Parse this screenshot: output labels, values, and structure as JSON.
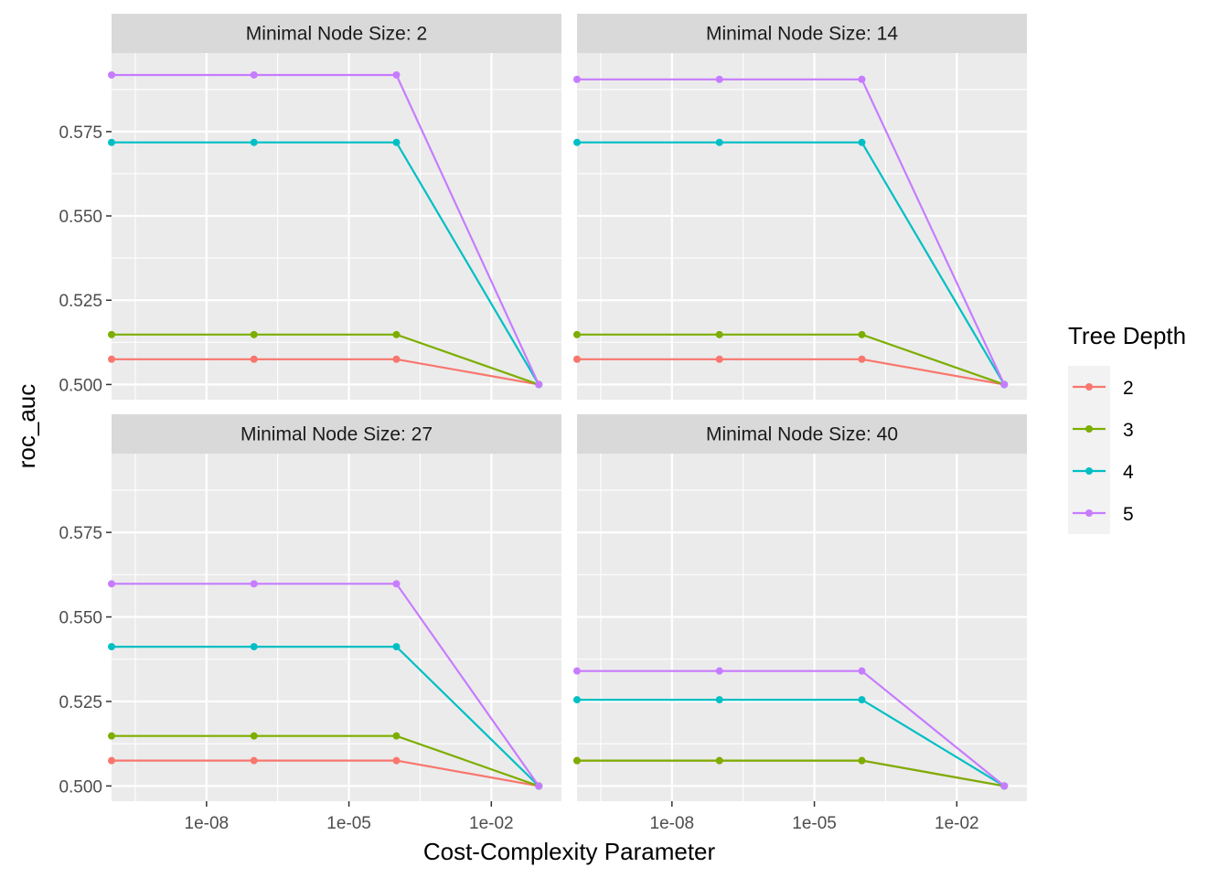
{
  "chart_data": {
    "type": "line",
    "facet_label_prefix": "Minimal Node Size: ",
    "xlabel": "Cost-Complexity Parameter",
    "ylabel": "roc_auc",
    "x_scale": "log10",
    "x_ticks": [
      1e-08,
      1e-05,
      0.01
    ],
    "x_tick_labels": [
      "1e-08",
      "1e-05",
      "1e-02"
    ],
    "xlim": [
      1e-10,
      0.3
    ],
    "y_ticks": [
      0.5,
      0.525,
      0.55,
      0.575
    ],
    "y_tick_labels": [
      "0.500",
      "0.525",
      "0.550",
      "0.575"
    ],
    "ylim": [
      0.4955,
      0.5983
    ],
    "x": [
      1e-10,
      1e-07,
      0.0001,
      0.1
    ],
    "legend": {
      "title": "Tree Depth",
      "position": "right"
    },
    "colors": {
      "2": "#F8766D",
      "3": "#7CAE00",
      "4": "#00BFC4",
      "5": "#C77CFF"
    },
    "panel_background": "#EBEBEB",
    "strip_background": "#D9D9D9",
    "grid": true,
    "panels": [
      {
        "facet": "Minimal Node Size: 2",
        "series": [
          {
            "name": "2",
            "values": [
              0.5075,
              0.5075,
              0.5075,
              0.5
            ]
          },
          {
            "name": "3",
            "values": [
              0.5148,
              0.5148,
              0.5148,
              0.5
            ]
          },
          {
            "name": "4",
            "values": [
              0.5718,
              0.5718,
              0.5718,
              0.5
            ]
          },
          {
            "name": "5",
            "values": [
              0.5918,
              0.5918,
              0.5918,
              0.5
            ]
          }
        ]
      },
      {
        "facet": "Minimal Node Size: 14",
        "series": [
          {
            "name": "2",
            "values": [
              0.5075,
              0.5075,
              0.5075,
              0.5
            ]
          },
          {
            "name": "3",
            "values": [
              0.5148,
              0.5148,
              0.5148,
              0.5
            ]
          },
          {
            "name": "4",
            "values": [
              0.5718,
              0.5718,
              0.5718,
              0.5
            ]
          },
          {
            "name": "5",
            "values": [
              0.5905,
              0.5905,
              0.5905,
              0.5
            ]
          }
        ]
      },
      {
        "facet": "Minimal Node Size: 27",
        "series": [
          {
            "name": "2",
            "values": [
              0.5075,
              0.5075,
              0.5075,
              0.5
            ]
          },
          {
            "name": "3",
            "values": [
              0.5148,
              0.5148,
              0.5148,
              0.5
            ]
          },
          {
            "name": "4",
            "values": [
              0.5412,
              0.5412,
              0.5412,
              0.5
            ]
          },
          {
            "name": "5",
            "values": [
              0.5598,
              0.5598,
              0.5598,
              0.5
            ]
          }
        ]
      },
      {
        "facet": "Minimal Node Size: 40",
        "series": [
          {
            "name": "2",
            "values": [
              0.5075,
              0.5075,
              0.5075,
              0.5
            ]
          },
          {
            "name": "3",
            "values": [
              0.5075,
              0.5075,
              0.5075,
              0.5
            ]
          },
          {
            "name": "4",
            "values": [
              0.5255,
              0.5255,
              0.5255,
              0.5
            ]
          },
          {
            "name": "5",
            "values": [
              0.534,
              0.534,
              0.534,
              0.5
            ]
          }
        ]
      }
    ]
  }
}
